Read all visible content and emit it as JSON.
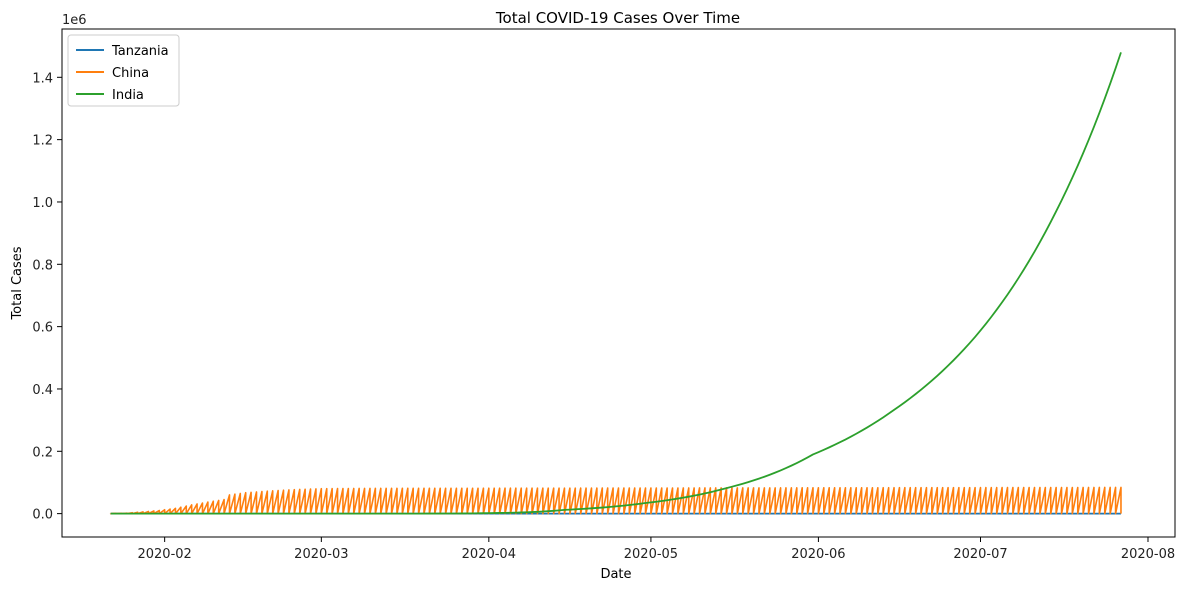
{
  "chart_data": {
    "type": "line",
    "title": "Total COVID-19 Cases Over Time",
    "xlabel": "Date",
    "ylabel": "Total Cases",
    "y_offset_label": "1e6",
    "xlim": [
      "2020-01-13",
      "2020-08-06"
    ],
    "ylim": [
      -75000,
      1555000
    ],
    "x_ticks": [
      "2020-02-01",
      "2020-03-01",
      "2020-04-01",
      "2020-05-01",
      "2020-06-01",
      "2020-07-01",
      "2020-08-01"
    ],
    "x_tick_labels": [
      "2020-02",
      "2020-03",
      "2020-04",
      "2020-05",
      "2020-06",
      "2020-07",
      "2020-08"
    ],
    "y_ticks": [
      0,
      200000,
      400000,
      600000,
      800000,
      1000000,
      1200000,
      1400000
    ],
    "y_tick_labels": [
      "0.0",
      "0.2",
      "0.4",
      "0.6",
      "0.8",
      "1.0",
      "1.2",
      "1.4"
    ],
    "legend_position": "top-left",
    "grid": false,
    "series": [
      {
        "name": "Tanzania",
        "color": "#1f77b4",
        "style": "flat",
        "x": [
          "2020-01-22",
          "2020-07-27"
        ],
        "y": [
          0,
          0
        ]
      },
      {
        "name": "China",
        "color": "#ff7f0e",
        "style": "oscillating",
        "x_start": "2020-01-22",
        "x_end": "2020-07-27",
        "oscillates_to": 0,
        "envelope_x": [
          "2020-01-22",
          "2020-01-25",
          "2020-01-28",
          "2020-01-31",
          "2020-02-03",
          "2020-02-06",
          "2020-02-09",
          "2020-02-12",
          "2020-02-13",
          "2020-02-16",
          "2020-02-20",
          "2020-02-25",
          "2020-03-01",
          "2020-03-10",
          "2020-07-27"
        ],
        "envelope_y": [
          550,
          1500,
          5500,
          10000,
          17000,
          28000,
          37000,
          45000,
          60000,
          67000,
          72000,
          77000,
          80000,
          81000,
          84000
        ]
      },
      {
        "name": "India",
        "color": "#2ca02c",
        "style": "line",
        "x": [
          "2020-01-22",
          "2020-03-01",
          "2020-03-31",
          "2020-04-15",
          "2020-04-30",
          "2020-05-15",
          "2020-05-31",
          "2020-06-15",
          "2020-06-30",
          "2020-07-15",
          "2020-07-27"
        ],
        "y": [
          0,
          3,
          1400,
          12000,
          34000,
          82000,
          190000,
          333000,
          567000,
          970000,
          1480000
        ]
      }
    ]
  }
}
